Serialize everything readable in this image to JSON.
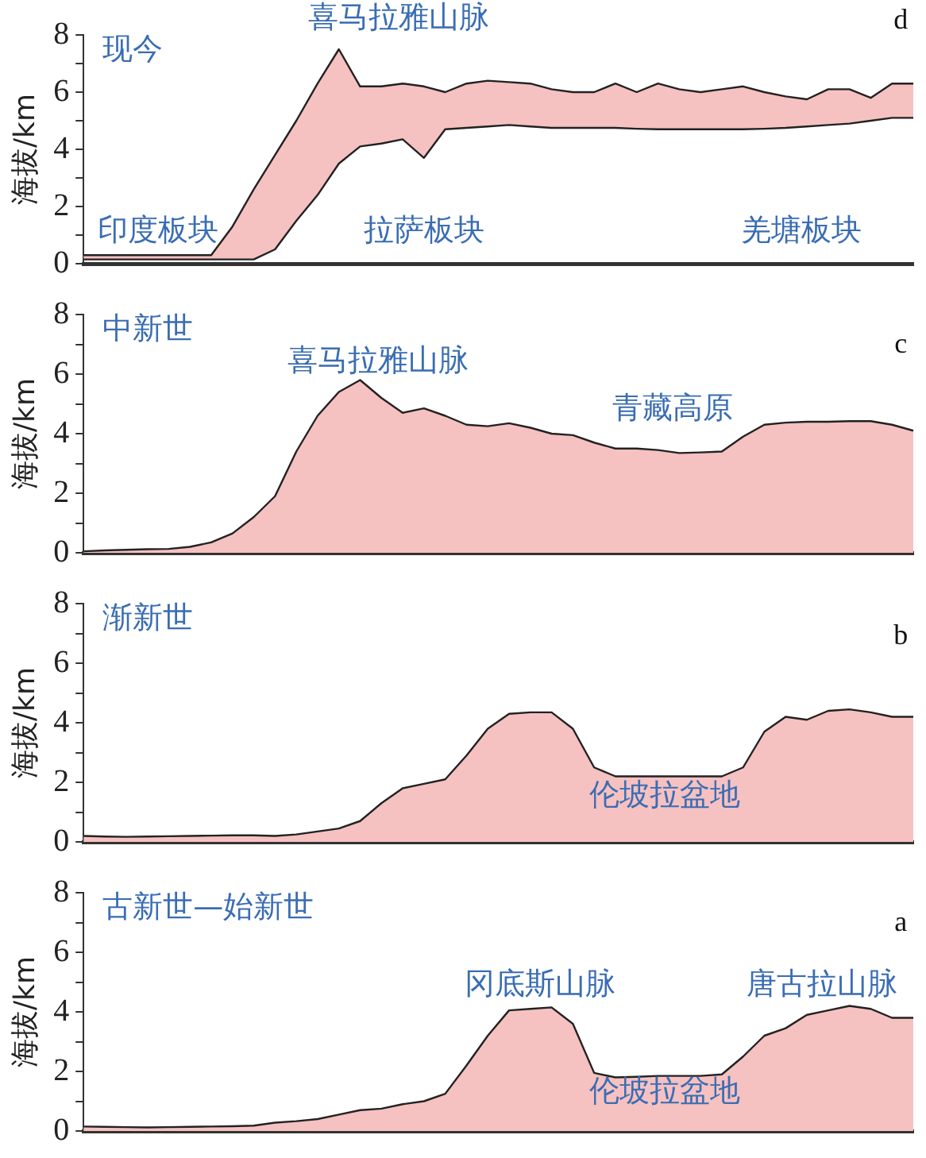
{
  "chart_data": [
    {
      "type": "area",
      "title": "现今",
      "ylabel": "海拔/km",
      "tick_labels": "y",
      "grid": false,
      "legend": false,
      "categories": [
        null,
        null,
        null,
        null,
        null,
        null,
        null,
        null,
        null,
        null,
        null,
        null,
        null,
        null,
        null,
        null,
        null,
        null,
        null,
        null,
        null,
        null,
        null,
        null,
        null,
        null,
        null,
        null,
        null,
        null,
        null,
        null,
        null,
        null,
        null,
        null,
        null,
        null,
        null,
        null
      ],
      "series": [
        {
          "type": "line",
          "color": "#222222",
          "values": [
            0.15,
            0.15,
            0.15,
            0.15,
            0.15,
            0.15,
            0.15,
            0.15,
            0.15,
            0.5,
            1.5,
            2.4,
            3.5,
            4.1,
            4.2,
            4.35,
            3.7,
            4.7,
            4.75,
            4.8,
            4.85,
            4.8,
            4.75,
            4.75,
            4.75,
            4.75,
            4.72,
            4.7,
            4.7,
            4.7,
            4.7,
            4.7,
            4.72,
            4.75,
            4.8,
            4.85,
            4.9,
            5.0,
            5.1,
            5.1
          ]
        },
        {
          "type": "area",
          "color": "#f6c1c1",
          "values": [
            0.3,
            0.3,
            0.3,
            0.3,
            0.3,
            0.3,
            0.3,
            1.3,
            2.6,
            3.8,
            5.0,
            6.3,
            7.5,
            6.2,
            6.2,
            6.3,
            6.2,
            6.0,
            6.3,
            6.4,
            6.35,
            6.3,
            6.1,
            6.0,
            6.0,
            6.3,
            6.0,
            6.3,
            6.1,
            6.0,
            6.1,
            6.2,
            6.0,
            5.85,
            5.75,
            6.1,
            6.1,
            5.8,
            6.3,
            6.3
          ]
        }
      ],
      "ylim": [
        0,
        8
      ],
      "yticks": [
        0,
        {
          "value": 1,
          "label": null
        },
        2,
        {
          "value": 3,
          "label": null
        },
        4,
        {
          "value": 5,
          "label": null
        },
        6,
        {
          "value": 7,
          "label": null
        },
        8
      ],
      "annotations": [
        "喜马拉雅山脉",
        "印度板块",
        "拉萨板块",
        "羌塘板块",
        "d"
      ]
    },
    {
      "type": "area",
      "title": "中新世",
      "ylabel": "海拔/km",
      "tick_labels": "y",
      "grid": false,
      "legend": false,
      "categories": [
        null,
        null,
        null,
        null,
        null,
        null,
        null,
        null,
        null,
        null,
        null,
        null,
        null,
        null,
        null,
        null,
        null,
        null,
        null,
        null,
        null,
        null,
        null,
        null,
        null,
        null,
        null,
        null,
        null,
        null,
        null,
        null,
        null,
        null,
        null,
        null,
        null,
        null,
        null,
        null
      ],
      "series": [
        {
          "color": "#f6c1c1",
          "values": [
            0.05,
            0.08,
            0.1,
            0.12,
            0.13,
            0.2,
            0.35,
            0.65,
            1.2,
            1.9,
            3.4,
            4.6,
            5.4,
            5.8,
            5.2,
            4.7,
            4.85,
            4.6,
            4.3,
            4.25,
            4.35,
            4.2,
            4.0,
            3.95,
            3.7,
            3.5,
            3.5,
            3.45,
            3.35,
            3.37,
            3.4,
            3.9,
            4.3,
            4.37,
            4.4,
            4.4,
            4.42,
            4.42,
            4.3,
            4.1
          ]
        }
      ],
      "ylim": [
        0,
        8
      ],
      "yticks": [
        0,
        {
          "value": 1,
          "label": null
        },
        2,
        {
          "value": 3,
          "label": null
        },
        4,
        {
          "value": 5,
          "label": null
        },
        6,
        {
          "value": 7,
          "label": null
        },
        8
      ],
      "annotations": [
        "喜马拉雅山脉",
        "青藏高原",
        "c"
      ]
    },
    {
      "type": "area",
      "title": "渐新世",
      "ylabel": "海拔/km",
      "tick_labels": "y",
      "grid": false,
      "legend": false,
      "categories": [
        null,
        null,
        null,
        null,
        null,
        null,
        null,
        null,
        null,
        null,
        null,
        null,
        null,
        null,
        null,
        null,
        null,
        null,
        null,
        null,
        null,
        null,
        null,
        null,
        null,
        null,
        null,
        null,
        null,
        null,
        null,
        null,
        null,
        null,
        null,
        null,
        null,
        null,
        null,
        null
      ],
      "series": [
        {
          "color": "#f6c1c1",
          "values": [
            0.2,
            0.18,
            0.17,
            0.18,
            0.19,
            0.2,
            0.21,
            0.22,
            0.22,
            0.2,
            0.25,
            0.35,
            0.45,
            0.7,
            1.3,
            1.8,
            1.95,
            2.1,
            2.9,
            3.8,
            4.3,
            4.35,
            4.35,
            3.8,
            2.5,
            2.2,
            2.2,
            2.2,
            2.2,
            2.2,
            2.2,
            2.5,
            3.7,
            4.2,
            4.1,
            4.4,
            4.45,
            4.35,
            4.2,
            4.2
          ]
        }
      ],
      "ylim": [
        0,
        8
      ],
      "yticks": [
        0,
        {
          "value": 1,
          "label": null
        },
        2,
        {
          "value": 3,
          "label": null
        },
        4,
        {
          "value": 5,
          "label": null
        },
        6,
        {
          "value": 7,
          "label": null
        },
        8
      ],
      "annotations": [
        "伦坡拉盆地",
        "b"
      ]
    },
    {
      "type": "area",
      "title": "古新世—始新世",
      "ylabel": "海拔/km",
      "tick_labels": "y",
      "grid": false,
      "legend": false,
      "categories": [
        null,
        null,
        null,
        null,
        null,
        null,
        null,
        null,
        null,
        null,
        null,
        null,
        null,
        null,
        null,
        null,
        null,
        null,
        null,
        null,
        null,
        null,
        null,
        null,
        null,
        null,
        null,
        null,
        null,
        null,
        null,
        null,
        null,
        null,
        null,
        null,
        null,
        null,
        null,
        null
      ],
      "series": [
        {
          "color": "#f6c1c1",
          "values": [
            0.15,
            0.14,
            0.13,
            0.12,
            0.13,
            0.14,
            0.15,
            0.16,
            0.18,
            0.28,
            0.33,
            0.4,
            0.55,
            0.7,
            0.75,
            0.9,
            1.0,
            1.25,
            2.2,
            3.2,
            4.05,
            4.1,
            4.15,
            3.6,
            1.95,
            1.8,
            1.82,
            1.85,
            1.85,
            1.85,
            1.9,
            2.5,
            3.2,
            3.45,
            3.9,
            4.05,
            4.2,
            4.1,
            3.8,
            3.8
          ]
        }
      ],
      "ylim": [
        0,
        8
      ],
      "yticks": [
        0,
        {
          "value": 1,
          "label": null
        },
        2,
        {
          "value": 3,
          "label": null
        },
        4,
        {
          "value": 5,
          "label": null
        },
        6,
        {
          "value": 7,
          "label": null
        },
        8
      ],
      "annotations": [
        "冈底斯山脉",
        "伦坡拉盆地",
        "唐古拉山脉",
        "a"
      ]
    }
  ]
}
